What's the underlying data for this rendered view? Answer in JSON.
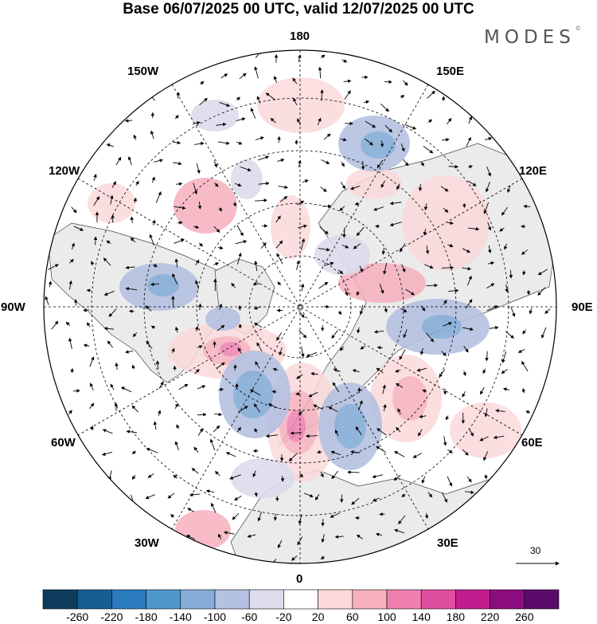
{
  "title": "Base 06/07/2025 00 UTC, valid 12/07/2025 00 UTC",
  "logo": {
    "text": "MODES",
    "mark": "©"
  },
  "longitude_labels": {
    "top": "180",
    "top_left": "150W",
    "top_right": "150E",
    "upper_left": "120W",
    "upper_right": "120E",
    "left": "90W",
    "right": "90E",
    "lower_left": "60W",
    "lower_right": "60E",
    "bottom_left": "30W",
    "bottom_right": "30E",
    "bottom": "0"
  },
  "reference_vector": {
    "value": "30"
  },
  "colorbar": {
    "labels": [
      "-260",
      "-220",
      "-180",
      "-140",
      "-100",
      "-60",
      "-20",
      "20",
      "60",
      "100",
      "140",
      "180",
      "220",
      "260"
    ],
    "colors": [
      "#0d3b5c",
      "#175e92",
      "#2b7bbf",
      "#4f98cc",
      "#86acd8",
      "#b4c1e0",
      "#dcdcec",
      "#ffffff",
      "#fbd9da",
      "#f6b0be",
      "#ef7fb0",
      "#e04ea0",
      "#c11d8e",
      "#8c0d80",
      "#5a0a6b"
    ]
  },
  "colors": {
    "grid": "#000000",
    "land_fill": "#ebebeb",
    "vector": "#000000"
  }
}
